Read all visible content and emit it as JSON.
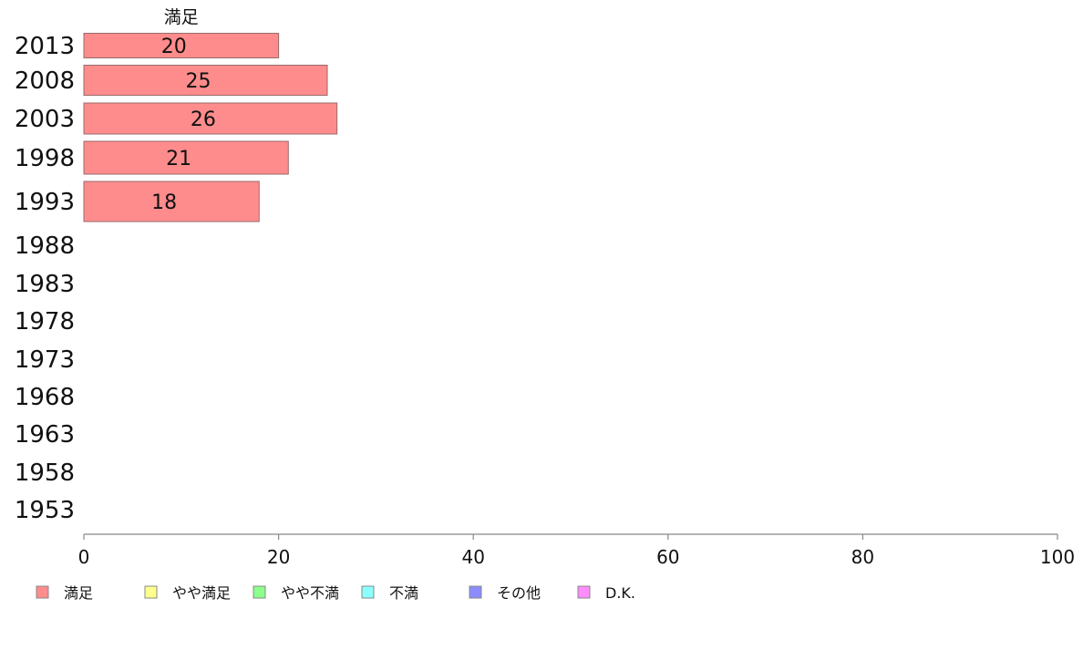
{
  "chart_data": {
    "type": "bar",
    "orientation": "horizontal",
    "stacked": true,
    "series_title_shown": "満足",
    "categories": [
      "2013",
      "2008",
      "2003",
      "1998",
      "1993",
      "1988",
      "1983",
      "1978",
      "1973",
      "1968",
      "1963",
      "1958",
      "1953"
    ],
    "series": [
      {
        "name": "満足",
        "color": "#ff8c8c",
        "values": [
          20,
          25,
          26,
          21,
          18,
          null,
          null,
          null,
          null,
          null,
          null,
          null,
          null
        ]
      },
      {
        "name": "やや満足",
        "color": "#ffff8c",
        "values": [
          null,
          null,
          null,
          null,
          null,
          null,
          null,
          null,
          null,
          null,
          null,
          null,
          null
        ]
      },
      {
        "name": "やや不満",
        "color": "#8cff8c",
        "values": [
          null,
          null,
          null,
          null,
          null,
          null,
          null,
          null,
          null,
          null,
          null,
          null,
          null
        ]
      },
      {
        "name": "不満",
        "color": "#8cffff",
        "values": [
          null,
          null,
          null,
          null,
          null,
          null,
          null,
          null,
          null,
          null,
          null,
          null,
          null
        ]
      },
      {
        "name": "その他",
        "color": "#8c8cff",
        "values": [
          null,
          null,
          null,
          null,
          null,
          null,
          null,
          null,
          null,
          null,
          null,
          null,
          null
        ]
      },
      {
        "name": "D.K.",
        "color": "#ff8cff",
        "values": [
          null,
          null,
          null,
          null,
          null,
          null,
          null,
          null,
          null,
          null,
          null,
          null,
          null
        ]
      }
    ],
    "data_labels": {
      "2013": "20",
      "2008": "25",
      "2003": "26",
      "1998": "21",
      "1993": "18"
    },
    "xlim": [
      0,
      100
    ],
    "xticks": [
      "0",
      "20",
      "40",
      "60",
      "80",
      "100"
    ],
    "grid": false,
    "legend_position": "bottom-left"
  }
}
